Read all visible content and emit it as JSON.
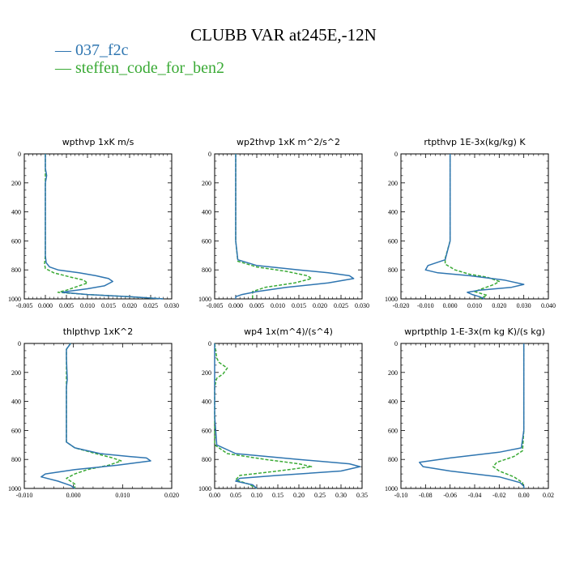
{
  "title": "CLUBB VAR at245E,-12N",
  "legend": [
    {
      "name": "— 037_f2c",
      "color": "#2e75b0"
    },
    {
      "name": "— steffen_code_for_ben2",
      "color": "#3aaa35"
    }
  ],
  "chart_data": [
    {
      "type": "line",
      "title": "wpthvp  1xK m/s",
      "xlim": [
        -0.005,
        0.03
      ],
      "ylim": [
        0,
        1000
      ],
      "xticks": [
        "-0.005",
        "0.000",
        "0.005",
        "0.010",
        "0.015",
        "0.020",
        "0.025",
        "0.030"
      ],
      "yticks": [
        "0",
        "200",
        "400",
        "600",
        "800",
        "1000"
      ],
      "series": [
        {
          "name": "037_f2c",
          "color": "#2e75b0",
          "dash": "",
          "x": [
            0.0,
            0.0,
            0.0003,
            0.0,
            0.0,
            0.0,
            0.0,
            0.0002,
            0.001,
            0.003,
            0.008,
            0.012,
            0.015,
            0.016,
            0.014,
            0.01,
            0.006,
            0.004,
            0.01,
            0.02,
            0.028
          ],
          "y": [
            0,
            100,
            150,
            200,
            400,
            600,
            700,
            750,
            780,
            800,
            820,
            840,
            860,
            880,
            910,
            930,
            945,
            955,
            970,
            985,
            1000
          ]
        },
        {
          "name": "steffen_code_for_ben2",
          "color": "#3aaa35",
          "dash": "4,2",
          "x": [
            0.0,
            0.0,
            0.0,
            0.0,
            0.0,
            -0.0002,
            0.0,
            0.002,
            0.006,
            0.009,
            0.01,
            0.008,
            0.005,
            0.003,
            0.01,
            0.02,
            0.028
          ],
          "y": [
            0,
            200,
            400,
            600,
            700,
            760,
            790,
            820,
            850,
            870,
            890,
            910,
            940,
            955,
            970,
            985,
            1000
          ]
        }
      ]
    },
    {
      "type": "line",
      "title": "wp2thvp  1xK m^2/s^2",
      "xlim": [
        -0.005,
        0.03
      ],
      "ylim": [
        0,
        1000
      ],
      "xticks": [
        "-0.005",
        "0.000",
        "0.005",
        "0.010",
        "0.015",
        "0.020",
        "0.025",
        "0.030"
      ],
      "yticks": [
        "0",
        "200",
        "400",
        "600",
        "800",
        "1000"
      ],
      "series": [
        {
          "name": "037_f2c",
          "color": "#2e75b0",
          "dash": "",
          "x": [
            0.0,
            0.0,
            0.0,
            0.0,
            0.0005,
            0.005,
            0.015,
            0.022,
            0.027,
            0.028,
            0.022,
            0.012,
            0.005,
            0.0015,
            0.0,
            0.0
          ],
          "y": [
            0,
            200,
            400,
            600,
            730,
            770,
            800,
            820,
            840,
            860,
            890,
            920,
            950,
            970,
            985,
            1000
          ]
        },
        {
          "name": "steffen_code_for_ben2",
          "color": "#3aaa35",
          "dash": "4,2",
          "x": [
            0.0,
            0.0,
            0.0,
            0.0,
            0.0005,
            0.005,
            0.012,
            0.017,
            0.018,
            0.014,
            0.007,
            0.004,
            0.004,
            0.004
          ],
          "y": [
            0,
            200,
            400,
            600,
            740,
            780,
            810,
            840,
            860,
            890,
            920,
            950,
            980,
            1000
          ]
        }
      ]
    },
    {
      "type": "line",
      "title": "rtpthvp  1E-3x(kg/kg) K",
      "xlim": [
        -0.02,
        0.04
      ],
      "ylim": [
        0,
        1000
      ],
      "xticks": [
        "-0.020",
        "-0.010",
        "0.000",
        "0.010",
        "0.020",
        "0.030",
        "0.040"
      ],
      "yticks": [
        "0",
        "200",
        "400",
        "600",
        "800",
        "1000"
      ],
      "series": [
        {
          "name": "037_f2c",
          "color": "#2e75b0",
          "dash": "",
          "x": [
            0.0,
            0.0,
            0.0,
            0.0,
            -0.002,
            -0.009,
            -0.01,
            -0.005,
            0.008,
            0.022,
            0.03,
            0.025,
            0.012,
            0.007,
            0.009,
            0.012,
            0.014
          ],
          "y": [
            0,
            200,
            400,
            600,
            730,
            770,
            800,
            820,
            840,
            870,
            900,
            920,
            940,
            955,
            970,
            985,
            1000
          ]
        },
        {
          "name": "steffen_code_for_ben2",
          "color": "#3aaa35",
          "dash": "4,2",
          "x": [
            0.0,
            0.0,
            0.0,
            0.0,
            -0.002,
            -0.002,
            0.002,
            0.008,
            0.015,
            0.02,
            0.018,
            0.013,
            0.01,
            0.015,
            0.012
          ],
          "y": [
            0,
            200,
            400,
            600,
            720,
            760,
            800,
            830,
            850,
            880,
            900,
            930,
            950,
            975,
            1000
          ]
        }
      ]
    },
    {
      "type": "line",
      "title": "thlpthvp  1xK^2",
      "xlim": [
        -0.01,
        0.025
      ],
      "ylim": [
        0,
        1000
      ],
      "xticks": [
        "-0.010",
        "0.000",
        "0.010",
        "0.020"
      ],
      "yticks": [
        "0",
        "200",
        "400",
        "600",
        "800",
        "1000"
      ],
      "series": [
        {
          "name": "037_f2c",
          "color": "#2e75b0",
          "dash": "",
          "x": [
            0.001,
            0.0,
            0.0,
            0.0002,
            0.0,
            0.0,
            0.0,
            0.002,
            0.008,
            0.015,
            0.019,
            0.02,
            0.012,
            0.002,
            -0.005,
            -0.006,
            -0.002,
            0.001,
            0.002
          ],
          "y": [
            0,
            40,
            100,
            250,
            300,
            500,
            680,
            720,
            760,
            780,
            790,
            810,
            840,
            870,
            900,
            920,
            950,
            980,
            1000
          ]
        },
        {
          "name": "steffen_code_for_ben2",
          "color": "#3aaa35",
          "dash": "4,2",
          "x": [
            0.001,
            0.0,
            0.0,
            0.0,
            0.002,
            0.007,
            0.011,
            0.013,
            0.01,
            0.005,
            0.002,
            0.0,
            0.002,
            0.002
          ],
          "y": [
            0,
            40,
            200,
            680,
            720,
            760,
            790,
            810,
            840,
            870,
            900,
            930,
            970,
            1000
          ]
        }
      ]
    },
    {
      "type": "line",
      "title": "wp4  1x(m^4)/(s^4)",
      "xlim": [
        0,
        0.35
      ],
      "ylim": [
        0,
        1000
      ],
      "xticks": [
        "0.00",
        "0.05",
        "0.10",
        "0.15",
        "0.20",
        "0.25",
        "0.30",
        "0.35"
      ],
      "yticks": [
        "0",
        "200",
        "400",
        "600",
        "800",
        "1000"
      ],
      "series": [
        {
          "name": "037_f2c",
          "color": "#2e75b0",
          "dash": "",
          "x": [
            0.0,
            0.0,
            0.0,
            0.0,
            0.0,
            0.0,
            0.005,
            0.05,
            0.2,
            0.32,
            0.345,
            0.3,
            0.15,
            0.06,
            0.05,
            0.09,
            0.1
          ],
          "y": [
            0,
            100,
            200,
            300,
            350,
            500,
            700,
            760,
            800,
            830,
            850,
            880,
            910,
            930,
            950,
            975,
            1000
          ]
        },
        {
          "name": "steffen_code_for_ben2",
          "color": "#3aaa35",
          "dash": "4,2",
          "x": [
            0.0,
            0.005,
            0.01,
            0.03,
            0.02,
            0.005,
            0.0,
            0.0,
            0.03,
            0.12,
            0.2,
            0.23,
            0.15,
            0.06,
            0.05,
            0.08,
            0.1
          ],
          "y": [
            0,
            100,
            130,
            170,
            210,
            240,
            300,
            700,
            760,
            800,
            830,
            850,
            880,
            910,
            940,
            970,
            1000
          ]
        }
      ]
    },
    {
      "type": "line",
      "title": "wprtpthlp  1-E-3x(m kg K)/(s kg)",
      "xlim": [
        -0.1,
        0.02
      ],
      "ylim": [
        0,
        1000
      ],
      "xticks": [
        "-0.10",
        "-0.08",
        "-0.06",
        "-0.04",
        "-0.02",
        "0.00",
        "0.02"
      ],
      "yticks": [
        "0",
        "200",
        "400",
        "600",
        "800",
        "1000"
      ],
      "series": [
        {
          "name": "037_f2c",
          "color": "#2e75b0",
          "dash": "",
          "x": [
            0.0,
            0.0,
            0.0,
            0.0,
            -0.002,
            -0.02,
            -0.06,
            -0.085,
            -0.082,
            -0.06,
            -0.02,
            -0.003,
            0.0,
            0.0
          ],
          "y": [
            0,
            200,
            400,
            600,
            720,
            750,
            790,
            820,
            850,
            880,
            920,
            960,
            985,
            1000
          ]
        },
        {
          "name": "steffen_code_for_ben2",
          "color": "#3aaa35",
          "dash": "4,2",
          "x": [
            0.0,
            0.0,
            0.0,
            0.0,
            -0.001,
            -0.008,
            -0.022,
            -0.025,
            -0.02,
            -0.008,
            -0.001,
            0.0
          ],
          "y": [
            0,
            200,
            400,
            600,
            740,
            780,
            820,
            850,
            880,
            920,
            960,
            1000
          ]
        }
      ]
    }
  ]
}
